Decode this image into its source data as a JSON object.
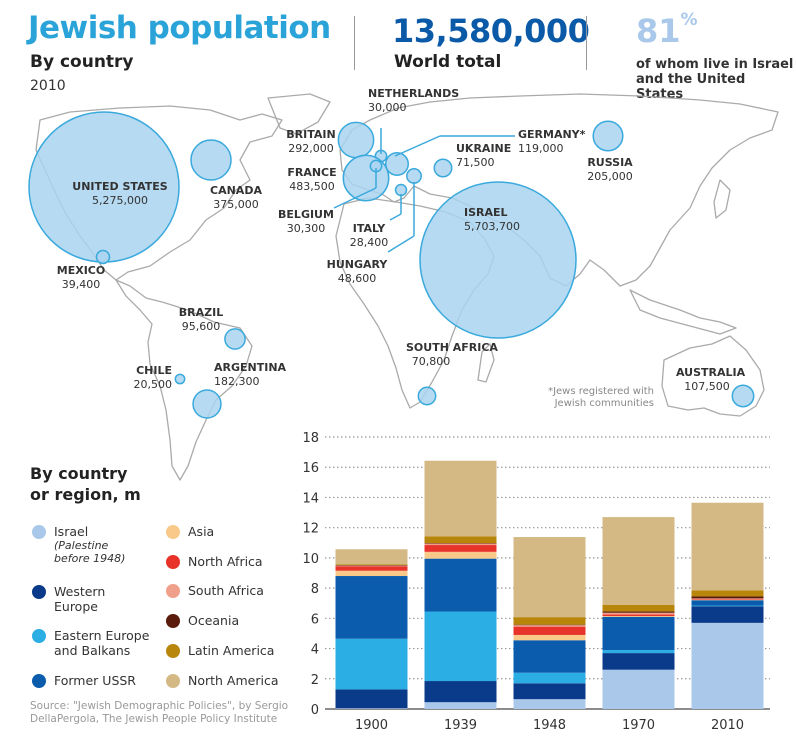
{
  "header": {
    "title": "Jewish population",
    "subtitle": "By country",
    "year": "2010",
    "world_total_value": "13,580,000",
    "world_total_label": "World total",
    "share_value": "81",
    "share_unit": "%",
    "share_label_line1": "of whom live in Israel",
    "share_label_line2": "and the United States"
  },
  "map": {
    "bubble_color": "#a9d4f0",
    "bubble_stroke": "#3aa9dc",
    "countries": [
      {
        "name": "UNITED STATES",
        "value": "5,275,000",
        "population": 5275000
      },
      {
        "name": "CANADA",
        "value": "375,000",
        "population": 375000
      },
      {
        "name": "MEXICO",
        "value": "39,400",
        "population": 39400
      },
      {
        "name": "BRITAIN",
        "value": "292,000",
        "population": 292000
      },
      {
        "name": "NETHERLANDS",
        "value": "30,000",
        "population": 30000
      },
      {
        "name": "FRANCE",
        "value": "483,500",
        "population": 483500
      },
      {
        "name": "BELGIUM",
        "value": "30,300",
        "population": 30300
      },
      {
        "name": "GERMANY*",
        "value": "119,000",
        "population": 119000
      },
      {
        "name": "UKRAINE",
        "value": "71,500",
        "population": 71500
      },
      {
        "name": "ITALY",
        "value": "28,400",
        "population": 28400
      },
      {
        "name": "HUNGARY",
        "value": "48,600",
        "population": 48600
      },
      {
        "name": "ISRAEL",
        "value": "5,703,700",
        "population": 5703700
      },
      {
        "name": "RUSSIA",
        "value": "205,000",
        "population": 205000
      },
      {
        "name": "BRAZIL",
        "value": "95,600",
        "population": 95600
      },
      {
        "name": "CHILE",
        "value": "20,500",
        "population": 20500
      },
      {
        "name": "ARGENTINA",
        "value": "182,300",
        "population": 182300
      },
      {
        "name": "SOUTH AFRICA",
        "value": "70,800",
        "population": 70800
      },
      {
        "name": "AUSTRALIA",
        "value": "107,500",
        "population": 107500
      }
    ],
    "footnote_line1": "*Jews registered with",
    "footnote_line2": "Jewish communities"
  },
  "legend": {
    "title_line1": "By country",
    "title_line2": "or region, m",
    "items": [
      {
        "label": "Israel",
        "note_line1": "(Palestine",
        "note_line2": "before 1948)",
        "color": "#a9c8ea"
      },
      {
        "label": "Western",
        "label2": "Europe",
        "color": "#0a3a8a"
      },
      {
        "label": "Eastern Europe",
        "label2": "and Balkans",
        "color": "#2aaee4"
      },
      {
        "label": "Former USSR",
        "color": "#0b5cad"
      },
      {
        "label": "Asia",
        "color": "#f9c98a"
      },
      {
        "label": "North Africa",
        "color": "#e8332a"
      },
      {
        "label": "South Africa",
        "color": "#f0a08a"
      },
      {
        "label": "Oceania",
        "color": "#5a1a0c"
      },
      {
        "label": "Latin America",
        "color": "#b8860b"
      },
      {
        "label": "North America",
        "color": "#d4b985"
      }
    ]
  },
  "source_line1": "Source: \"Jewish Demographic Policies\", by Sergio",
  "source_line2": "DellaPergola, The Jewish People Policy Institute",
  "chart_data": {
    "type": "bar",
    "stacked": true,
    "title": "By country or region, m",
    "xlabel": "",
    "ylabel": "",
    "ylim": [
      0,
      18
    ],
    "yticks": [
      0,
      2,
      4,
      6,
      8,
      10,
      12,
      14,
      16,
      18
    ],
    "grid": true,
    "categories": [
      "1900",
      "1939",
      "1948",
      "1970",
      "2010"
    ],
    "series": [
      {
        "name": "Israel (Palestine before 1948)",
        "color": "#a9c8ea",
        "values": [
          0.05,
          0.45,
          0.65,
          2.6,
          5.7
        ]
      },
      {
        "name": "Western Europe",
        "color": "#0a3a8a",
        "values": [
          1.25,
          1.4,
          1.05,
          1.1,
          1.1
        ]
      },
      {
        "name": "Eastern Europe and Balkans",
        "color": "#2aaee4",
        "values": [
          3.35,
          4.6,
          0.7,
          0.2,
          0.05
        ]
      },
      {
        "name": "Former USSR",
        "color": "#0b5cad",
        "values": [
          4.15,
          3.5,
          2.15,
          2.2,
          0.35
        ]
      },
      {
        "name": "Asia",
        "color": "#f9c98a",
        "values": [
          0.35,
          0.45,
          0.35,
          0.05,
          0.03
        ]
      },
      {
        "name": "North Africa",
        "color": "#e8332a",
        "values": [
          0.3,
          0.45,
          0.55,
          0.1,
          0.02
        ]
      },
      {
        "name": "South Africa",
        "color": "#f0a08a",
        "values": [
          0.05,
          0.1,
          0.1,
          0.12,
          0.07
        ]
      },
      {
        "name": "Oceania",
        "color": "#5a1a0c",
        "values": [
          0.02,
          0.03,
          0.03,
          0.08,
          0.13
        ]
      },
      {
        "name": "Latin America",
        "color": "#b8860b",
        "values": [
          0.05,
          0.45,
          0.5,
          0.45,
          0.4
        ]
      },
      {
        "name": "North America",
        "color": "#d4b985",
        "values": [
          1.0,
          5.0,
          5.3,
          5.8,
          5.8
        ]
      }
    ]
  }
}
